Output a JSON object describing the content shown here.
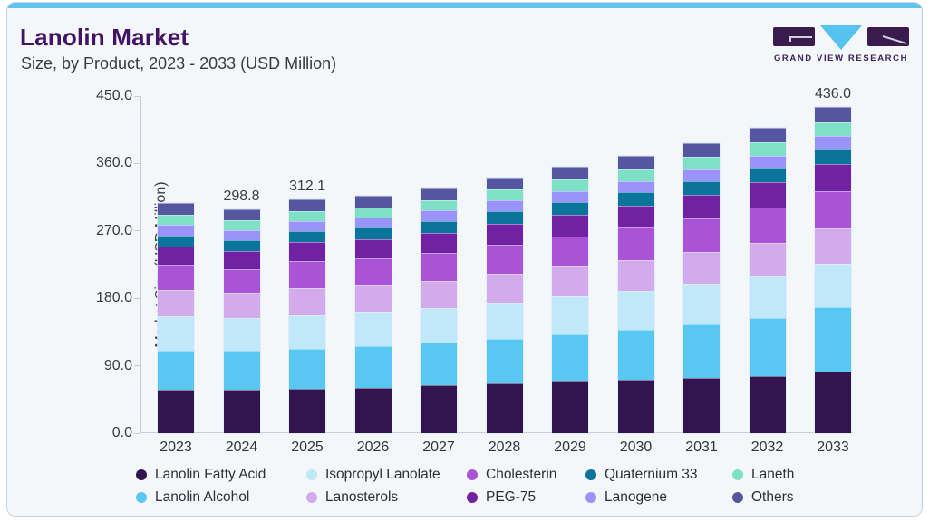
{
  "header": {
    "title": "Lanolin Market",
    "subtitle": "Size, by Product, 2023 - 2033 (USD Million)"
  },
  "logo": {
    "wordmark": "GRAND VIEW RESEARCH"
  },
  "theme": {
    "topbar_accent": "#61c4ee",
    "card_background": "#f3f7fa",
    "card_border": "#c7d1e0",
    "title_color": "#431365",
    "axis_color": "#c8ccd6",
    "text_color": "#3a3a45"
  },
  "chart_data": {
    "type": "bar",
    "stacked": true,
    "title": "Lanolin Market Size, by Product, 2023 - 2033 (USD Million)",
    "xlabel": "",
    "ylabel": "Market Size (USD Million)",
    "ylim": [
      0,
      450
    ],
    "yticks": [
      "0.0",
      "90.0",
      "180.0",
      "270.0",
      "360.0",
      "450.0"
    ],
    "grid": false,
    "legend_position": "bottom",
    "categories": [
      "2023",
      "2024",
      "2025",
      "2026",
      "2027",
      "2028",
      "2029",
      "2030",
      "2031",
      "2032",
      "2033"
    ],
    "series": [
      {
        "name": "Lanolin Fatty Acid",
        "color": "#32154e",
        "values": [
          58.0,
          58.5,
          59.5,
          61.0,
          64.0,
          67.0,
          69.5,
          71.5,
          73.5,
          76.0,
          82.5
        ]
      },
      {
        "name": "Lanolin Alcohol",
        "color": "#58c8f3",
        "values": [
          52.4,
          51.5,
          52.8,
          55.0,
          56.5,
          59.0,
          62.5,
          66.5,
          72.0,
          78.0,
          85.0
        ]
      },
      {
        "name": "Isopropyl Lanolate",
        "color": "#c1e8f9",
        "values": [
          45.0,
          44.0,
          45.0,
          45.5,
          46.5,
          48.5,
          50.5,
          52.0,
          53.5,
          55.5,
          59.0
        ]
      },
      {
        "name": "Lanosterols",
        "color": "#d3aaeb",
        "values": [
          35.4,
          34.0,
          35.9,
          35.5,
          36.5,
          38.5,
          40.0,
          41.5,
          43.0,
          44.5,
          46.3
        ]
      },
      {
        "name": "Cholesterin",
        "color": "#a953d6",
        "values": [
          34.0,
          31.5,
          37.1,
          36.5,
          37.5,
          38.5,
          40.0,
          42.5,
          45.0,
          47.5,
          50.0
        ]
      },
      {
        "name": "PEG-75",
        "color": "#7122a3",
        "values": [
          24.2,
          23.5,
          24.5,
          25.5,
          26.5,
          28.0,
          29.0,
          30.0,
          31.5,
          33.5,
          36.0
        ]
      },
      {
        "name": "Quaternium 33",
        "color": "#0b749a",
        "values": [
          15.0,
          14.8,
          15.0,
          15.3,
          16.0,
          16.8,
          17.0,
          17.3,
          18.0,
          19.3,
          21.0
        ]
      },
      {
        "name": "Lanogene",
        "color": "#9b93fc",
        "values": [
          14.0,
          13.5,
          13.6,
          13.8,
          14.2,
          14.5,
          15.0,
          15.4,
          15.9,
          16.4,
          17.0
        ]
      },
      {
        "name": "Laneth",
        "color": "#7ee1c6",
        "values": [
          13.3,
          12.5,
          12.8,
          13.1,
          13.6,
          14.0,
          14.7,
          15.4,
          16.2,
          17.1,
          18.2
        ]
      },
      {
        "name": "Others",
        "color": "#5457a0",
        "values": [
          16.0,
          15.0,
          15.9,
          16.0,
          16.5,
          16.8,
          17.5,
          18.3,
          19.0,
          19.8,
          21.0
        ]
      }
    ],
    "total_labels": {
      "2024": "298.8",
      "2025": "312.1",
      "2033": "436.0"
    },
    "legend_order": [
      "Lanolin Fatty Acid",
      "Isopropyl Lanolate",
      "Cholesterin",
      "Quaternium 33",
      "Laneth",
      "Lanolin Alcohol",
      "Lanosterols",
      "PEG-75",
      "Lanogene",
      "Others"
    ]
  }
}
